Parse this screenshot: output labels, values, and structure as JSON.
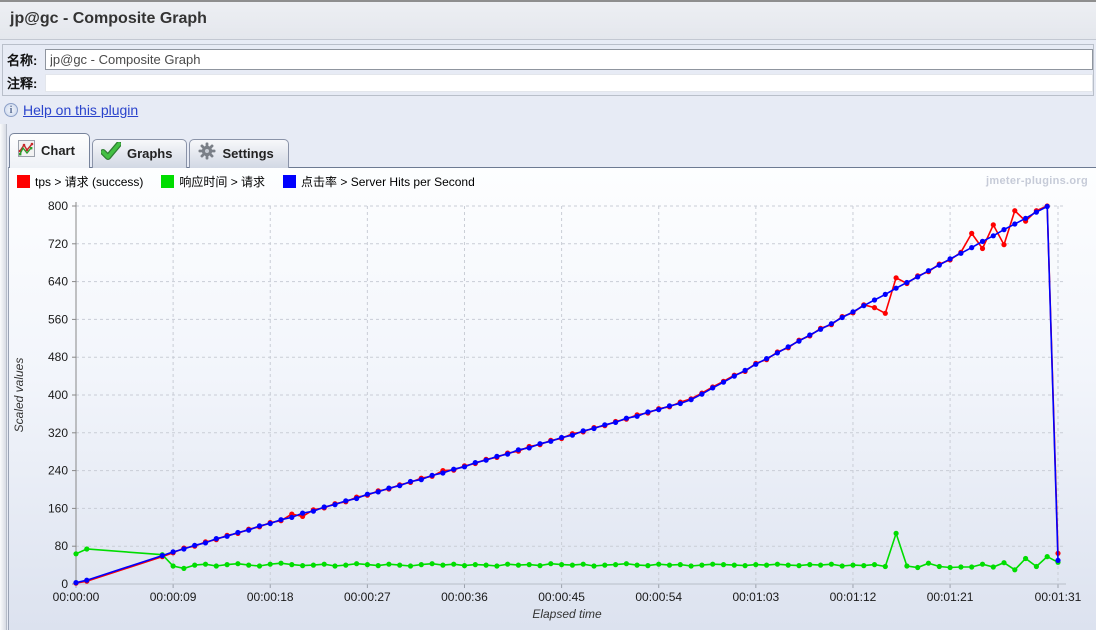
{
  "window": {
    "title": "jp@gc - Composite Graph"
  },
  "form": {
    "name_label": "名称:",
    "name_value": "jp@gc - Composite Graph",
    "comment_label": "注释:",
    "comment_value": "",
    "help_icon": "info-icon",
    "help_icon_glyph": "i",
    "help_link": "Help on this plugin"
  },
  "tabs": [
    {
      "label": "Chart",
      "icon": "chart-icon",
      "active": true
    },
    {
      "label": "Graphs",
      "icon": "checkmark-icon",
      "active": false
    },
    {
      "label": "Settings",
      "icon": "gear-icon",
      "active": false
    }
  ],
  "watermark": "jmeter-plugins.org",
  "legend": [
    {
      "label": "tps > 请求 (success)",
      "color": "#fe0000"
    },
    {
      "label": "响应时间 > 请求",
      "color": "#00dd00"
    },
    {
      "label": "点击率 > Server Hits per Second",
      "color": "#0000fe"
    }
  ],
  "chart_data": {
    "type": "line",
    "title": "",
    "xlabel": "Elapsed time",
    "ylabel": "Scaled values",
    "xlim": [
      0,
      91
    ],
    "ylim": [
      0,
      800
    ],
    "grid": true,
    "legend_position": "top-left",
    "y_ticks": [
      0,
      80,
      160,
      240,
      320,
      400,
      480,
      560,
      640,
      720,
      800
    ],
    "x_ticks": [
      {
        "t": 0,
        "label": "00:00:00"
      },
      {
        "t": 9,
        "label": "00:00:09"
      },
      {
        "t": 18,
        "label": "00:00:18"
      },
      {
        "t": 27,
        "label": "00:00:27"
      },
      {
        "t": 36,
        "label": "00:00:36"
      },
      {
        "t": 45,
        "label": "00:00:45"
      },
      {
        "t": 54,
        "label": "00:00:54"
      },
      {
        "t": 63,
        "label": "00:01:03"
      },
      {
        "t": 72,
        "label": "00:01:12"
      },
      {
        "t": 81,
        "label": "00:01:21"
      },
      {
        "t": 91,
        "label": "00:01:31"
      }
    ],
    "series": [
      {
        "name": "tps > 请求 (success)",
        "color": "#fe0000",
        "points": [
          [
            0,
            2
          ],
          [
            1,
            6
          ],
          [
            8,
            58
          ],
          [
            9,
            66
          ],
          [
            10,
            76
          ],
          [
            11,
            80
          ],
          [
            12,
            89
          ],
          [
            13,
            94
          ],
          [
            14,
            103
          ],
          [
            15,
            107
          ],
          [
            16,
            116
          ],
          [
            17,
            121
          ],
          [
            18,
            130
          ],
          [
            19,
            134
          ],
          [
            20,
            148
          ],
          [
            21,
            143
          ],
          [
            22,
            157
          ],
          [
            23,
            161
          ],
          [
            24,
            170
          ],
          [
            25,
            174
          ],
          [
            26,
            184
          ],
          [
            27,
            188
          ],
          [
            28,
            197
          ],
          [
            29,
            201
          ],
          [
            30,
            210
          ],
          [
            31,
            215
          ],
          [
            32,
            224
          ],
          [
            33,
            228
          ],
          [
            34,
            240
          ],
          [
            35,
            241
          ],
          [
            36,
            250
          ],
          [
            37,
            255
          ],
          [
            38,
            264
          ],
          [
            39,
            268
          ],
          [
            40,
            277
          ],
          [
            41,
            281
          ],
          [
            42,
            291
          ],
          [
            43,
            295
          ],
          [
            44,
            304
          ],
          [
            45,
            308
          ],
          [
            46,
            318
          ],
          [
            47,
            322
          ],
          [
            48,
            331
          ],
          [
            49,
            335
          ],
          [
            50,
            344
          ],
          [
            51,
            349
          ],
          [
            52,
            358
          ],
          [
            53,
            362
          ],
          [
            54,
            371
          ],
          [
            55,
            375
          ],
          [
            56,
            385
          ],
          [
            57,
            392
          ],
          [
            58,
            404
          ],
          [
            59,
            417
          ],
          [
            60,
            429
          ],
          [
            61,
            442
          ],
          [
            62,
            450
          ],
          [
            63,
            467
          ],
          [
            64,
            475
          ],
          [
            65,
            491
          ],
          [
            66,
            500
          ],
          [
            67,
            516
          ],
          [
            68,
            525
          ],
          [
            69,
            541
          ],
          [
            70,
            549
          ],
          [
            71,
            566
          ],
          [
            72,
            574
          ],
          [
            73,
            591
          ],
          [
            74,
            585
          ],
          [
            75,
            573
          ],
          [
            76,
            648
          ],
          [
            77,
            636
          ],
          [
            78,
            652
          ],
          [
            79,
            661
          ],
          [
            80,
            677
          ],
          [
            81,
            686
          ],
          [
            82,
            702
          ],
          [
            83,
            742
          ],
          [
            84,
            710
          ],
          [
            85,
            760
          ],
          [
            86,
            718
          ],
          [
            87,
            790
          ],
          [
            88,
            768
          ],
          [
            89,
            790
          ],
          [
            90,
            800
          ],
          [
            91,
            65
          ]
        ]
      },
      {
        "name": "响应时间 > 请求",
        "color": "#00dd00",
        "points": [
          [
            0,
            64
          ],
          [
            1,
            74
          ],
          [
            8,
            62
          ],
          [
            9,
            38
          ],
          [
            10,
            33
          ],
          [
            11,
            40
          ],
          [
            12,
            42
          ],
          [
            13,
            38
          ],
          [
            14,
            41
          ],
          [
            15,
            43
          ],
          [
            16,
            40
          ],
          [
            17,
            38
          ],
          [
            18,
            42
          ],
          [
            19,
            44
          ],
          [
            20,
            41
          ],
          [
            21,
            39
          ],
          [
            22,
            40
          ],
          [
            23,
            42
          ],
          [
            24,
            38
          ],
          [
            25,
            40
          ],
          [
            26,
            43
          ],
          [
            27,
            41
          ],
          [
            28,
            39
          ],
          [
            29,
            42
          ],
          [
            30,
            40
          ],
          [
            31,
            38
          ],
          [
            32,
            41
          ],
          [
            33,
            43
          ],
          [
            34,
            40
          ],
          [
            35,
            42
          ],
          [
            36,
            39
          ],
          [
            37,
            41
          ],
          [
            38,
            40
          ],
          [
            39,
            38
          ],
          [
            40,
            42
          ],
          [
            41,
            40
          ],
          [
            42,
            41
          ],
          [
            43,
            39
          ],
          [
            44,
            43
          ],
          [
            45,
            41
          ],
          [
            46,
            40
          ],
          [
            47,
            42
          ],
          [
            48,
            38
          ],
          [
            49,
            40
          ],
          [
            50,
            41
          ],
          [
            51,
            43
          ],
          [
            52,
            40
          ],
          [
            53,
            39
          ],
          [
            54,
            42
          ],
          [
            55,
            40
          ],
          [
            56,
            41
          ],
          [
            57,
            38
          ],
          [
            58,
            40
          ],
          [
            59,
            42
          ],
          [
            60,
            41
          ],
          [
            61,
            40
          ],
          [
            62,
            39
          ],
          [
            63,
            41
          ],
          [
            64,
            40
          ],
          [
            65,
            42
          ],
          [
            66,
            40
          ],
          [
            67,
            39
          ],
          [
            68,
            41
          ],
          [
            69,
            40
          ],
          [
            70,
            42
          ],
          [
            71,
            38
          ],
          [
            72,
            40
          ],
          [
            73,
            39
          ],
          [
            74,
            41
          ],
          [
            75,
            37
          ],
          [
            76,
            107
          ],
          [
            77,
            38
          ],
          [
            78,
            35
          ],
          [
            79,
            44
          ],
          [
            80,
            37
          ],
          [
            81,
            35
          ],
          [
            82,
            36
          ],
          [
            83,
            36
          ],
          [
            84,
            42
          ],
          [
            85,
            36
          ],
          [
            86,
            45
          ],
          [
            87,
            30
          ],
          [
            88,
            54
          ],
          [
            89,
            37
          ],
          [
            90,
            58
          ],
          [
            91,
            46
          ]
        ]
      },
      {
        "name": "点击率 > Server Hits per Second",
        "color": "#0000fe",
        "points": [
          [
            0,
            3
          ],
          [
            1,
            8
          ],
          [
            8,
            60
          ],
          [
            9,
            68
          ],
          [
            10,
            74
          ],
          [
            11,
            82
          ],
          [
            12,
            87
          ],
          [
            13,
            96
          ],
          [
            14,
            101
          ],
          [
            15,
            109
          ],
          [
            16,
            114
          ],
          [
            17,
            123
          ],
          [
            18,
            128
          ],
          [
            19,
            136
          ],
          [
            20,
            141
          ],
          [
            21,
            150
          ],
          [
            22,
            154
          ],
          [
            23,
            163
          ],
          [
            24,
            168
          ],
          [
            25,
            176
          ],
          [
            26,
            181
          ],
          [
            27,
            190
          ],
          [
            28,
            195
          ],
          [
            29,
            203
          ],
          [
            30,
            208
          ],
          [
            31,
            217
          ],
          [
            32,
            221
          ],
          [
            33,
            230
          ],
          [
            34,
            235
          ],
          [
            35,
            243
          ],
          [
            36,
            248
          ],
          [
            37,
            257
          ],
          [
            38,
            262
          ],
          [
            39,
            270
          ],
          [
            40,
            275
          ],
          [
            41,
            284
          ],
          [
            42,
            288
          ],
          [
            43,
            297
          ],
          [
            44,
            302
          ],
          [
            45,
            310
          ],
          [
            46,
            315
          ],
          [
            47,
            324
          ],
          [
            48,
            329
          ],
          [
            49,
            337
          ],
          [
            50,
            342
          ],
          [
            51,
            351
          ],
          [
            52,
            355
          ],
          [
            53,
            364
          ],
          [
            54,
            369
          ],
          [
            55,
            377
          ],
          [
            56,
            382
          ],
          [
            57,
            390
          ],
          [
            58,
            402
          ],
          [
            59,
            415
          ],
          [
            60,
            427
          ],
          [
            61,
            440
          ],
          [
            62,
            452
          ],
          [
            63,
            465
          ],
          [
            64,
            477
          ],
          [
            65,
            489
          ],
          [
            66,
            502
          ],
          [
            67,
            514
          ],
          [
            68,
            527
          ],
          [
            69,
            539
          ],
          [
            70,
            551
          ],
          [
            71,
            564
          ],
          [
            72,
            576
          ],
          [
            73,
            589
          ],
          [
            74,
            601
          ],
          [
            75,
            613
          ],
          [
            76,
            626
          ],
          [
            77,
            638
          ],
          [
            78,
            650
          ],
          [
            79,
            663
          ],
          [
            80,
            675
          ],
          [
            81,
            688
          ],
          [
            82,
            700
          ],
          [
            83,
            712
          ],
          [
            84,
            725
          ],
          [
            85,
            737
          ],
          [
            86,
            750
          ],
          [
            87,
            762
          ],
          [
            88,
            774
          ],
          [
            89,
            787
          ],
          [
            90,
            799
          ],
          [
            91,
            50
          ]
        ]
      }
    ]
  }
}
